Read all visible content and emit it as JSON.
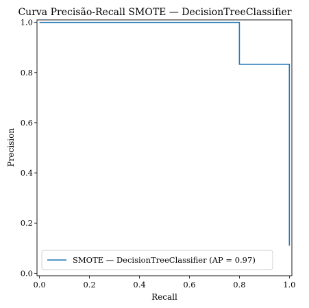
{
  "chart_data": {
    "type": "line",
    "title": "Curva Precisão-Recall SMOTE — DecisionTreeClassifier",
    "xlabel": "Recall",
    "ylabel": "Precision",
    "xlim": [
      -0.01,
      1.01
    ],
    "ylim": [
      -0.01,
      1.01
    ],
    "xticks": [
      0.0,
      0.2,
      0.4,
      0.6,
      0.8,
      1.0
    ],
    "yticks": [
      0.0,
      0.2,
      0.4,
      0.6,
      0.8,
      1.0
    ],
    "xtick_labels": [
      "0.0",
      "0.2",
      "0.4",
      "0.6",
      "0.8",
      "1.0"
    ],
    "ytick_labels": [
      "0.0",
      "0.2",
      "0.4",
      "0.6",
      "0.8",
      "1.0"
    ],
    "grid": false,
    "legend_position": "lower-left",
    "series": [
      {
        "name": "SMOTE — DecisionTreeClassifier (AP = 0.97)",
        "color": "#1f77b4",
        "drawstyle": "steps-post",
        "recall": [
          0.0,
          0.8,
          0.8,
          1.0,
          1.0
        ],
        "precision": [
          1.0,
          1.0,
          0.833,
          0.833,
          0.11
        ]
      }
    ]
  }
}
